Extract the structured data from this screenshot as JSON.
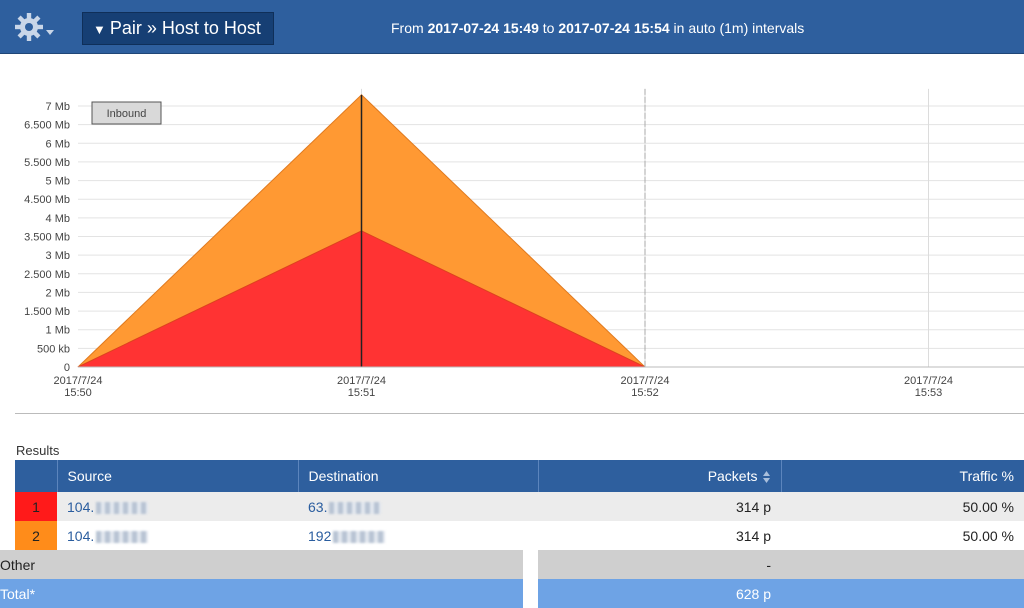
{
  "topbar": {
    "menu_icon": "gear-icon",
    "menu_label": "Pair » Host to Host",
    "range_from_label": "From",
    "range_from": "2017-07-24 15:49",
    "range_to_label": "to",
    "range_to": "2017-07-24 15:54",
    "range_suffix": "in auto (1m) intervals"
  },
  "chart_data": {
    "type": "area",
    "legend": "Inbound",
    "x": [
      "2017/7/24 15:50",
      "2017/7/24 15:51",
      "2017/7/24 15:52",
      "2017/7/24 15:53"
    ],
    "x_tick_dates": [
      "2017/7/24",
      "2017/7/24",
      "2017/7/24",
      "2017/7/24"
    ],
    "x_tick_times": [
      "15:50",
      "15:51",
      "15:52",
      "15:53"
    ],
    "y_ticks": [
      "0",
      "500 kb",
      "1 Mb",
      "1.500 Mb",
      "2 Mb",
      "2.500 Mb",
      "3 Mb",
      "3.500 Mb",
      "4 Mb",
      "4.500 Mb",
      "5 Mb",
      "5.500 Mb",
      "6 Mb",
      "6.500 Mb",
      "7 Mb"
    ],
    "ylim": [
      0,
      7.3
    ],
    "stacked": true,
    "series": [
      {
        "color": "#ff3333",
        "values": [
          0,
          3.65,
          0,
          null
        ]
      },
      {
        "color": "#ff9933",
        "values": [
          0,
          3.65,
          0,
          null
        ]
      }
    ]
  },
  "results": {
    "label": "Results",
    "headers": {
      "source": "Source",
      "destination": "Destination",
      "packets": "Packets",
      "traffic": "Traffic %"
    },
    "rows": [
      {
        "rank": "1",
        "source": "104.",
        "destination": "63.",
        "packets": "314 p",
        "traffic": "50.00 %"
      },
      {
        "rank": "2",
        "source": "104.",
        "destination": "192",
        "packets": "314 p",
        "traffic": "50.00 %"
      }
    ],
    "other": {
      "label": "Other",
      "packets": "-"
    },
    "total": {
      "label": "Total*",
      "packets": "628 p"
    }
  },
  "colors": {
    "header": "#2e5f9e",
    "menu": "#163f74",
    "rank1": "#ff1a1a",
    "rank2": "#ff8c1a",
    "total": "#6ea3e5"
  }
}
